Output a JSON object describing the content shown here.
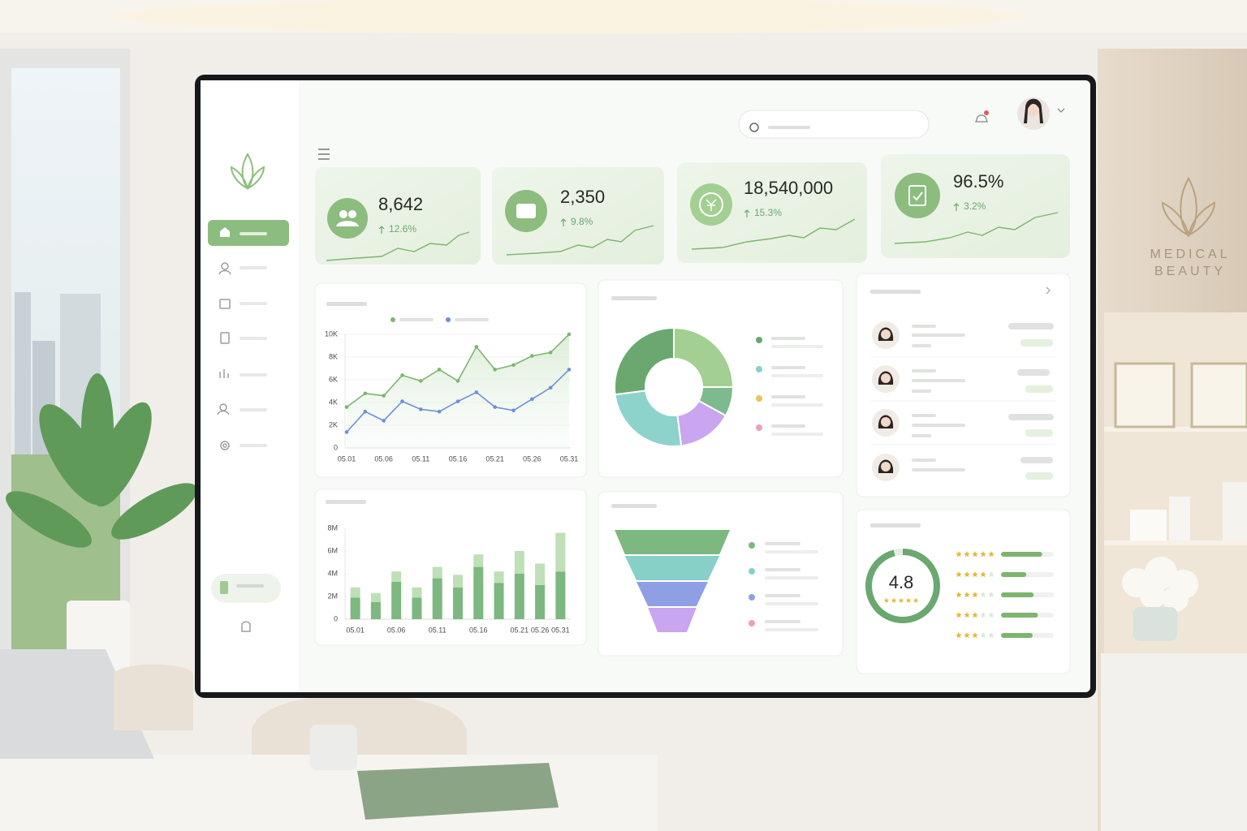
{
  "sign": {
    "line1": "MEDICAL",
    "line2": "BEAUTY"
  },
  "kpis": [
    {
      "value": "8,642",
      "change": "12.6%"
    },
    {
      "value": "2,350",
      "change": "9.8%"
    },
    {
      "value": "18,540,000",
      "change": "15.3%"
    },
    {
      "value": "96.5%",
      "change": "3.2%"
    }
  ],
  "chart_data": [
    {
      "type": "line",
      "categories": [
        "05.01",
        null,
        "05.06",
        null,
        "05.11",
        null,
        "05.16",
        null,
        "05.21",
        null,
        "05.26",
        null,
        "05.31"
      ],
      "series": [
        {
          "color": "#7db56f",
          "values": [
            3600,
            4800,
            4600,
            6400,
            5900,
            6900,
            5900,
            8900,
            6900,
            7300,
            8100,
            8400,
            10000
          ]
        },
        {
          "color": "#6f8fd8",
          "values": [
            1400,
            3200,
            2400,
            4100,
            3400,
            3200,
            4100,
            4900,
            3600,
            3300,
            4300,
            5300,
            6900
          ]
        }
      ],
      "ylim": [
        0,
        10000
      ],
      "yticks": [
        0,
        {
          "value": 2000,
          "label": "2K"
        },
        {
          "value": 4000,
          "label": "4K"
        },
        {
          "value": 6000,
          "label": "6K"
        },
        {
          "value": 8000,
          "label": "8K"
        },
        {
          "value": 10000,
          "label": "10K"
        }
      ],
      "grid": true
    },
    {
      "type": "pie",
      "donut": true,
      "values": [
        25,
        8,
        15,
        25,
        27
      ],
      "colors": [
        "#a3cf92",
        "#7dbb8e",
        "#c9a6ef",
        "#8dd3cc",
        "#6aa86f"
      ],
      "legend_colors": [
        "#6aa86f",
        "#86d0c8",
        "#e8c45c",
        "#ef9fb0"
      ]
    },
    {
      "type": "bar",
      "stacked": true,
      "categories": [
        "05.01",
        null,
        "05.06",
        null,
        "05.11",
        null,
        "05.16",
        null,
        "05.21",
        "05.26",
        "05.31"
      ],
      "series": [
        {
          "color": "#7cb87f",
          "values": [
            1900000,
            1500000,
            3300000,
            1900000,
            3600000,
            2800000,
            4600000,
            3200000,
            4000000,
            3000000,
            4200000
          ]
        },
        {
          "color": "#bfdfb7",
          "values": [
            900000,
            800000,
            900000,
            900000,
            1000000,
            1100000,
            1100000,
            1000000,
            2000000,
            1900000,
            3400000
          ]
        }
      ],
      "ylim": [
        0,
        8000000
      ],
      "yticks": [
        0,
        {
          "value": 2000000,
          "label": "2M"
        },
        {
          "value": 4000000,
          "label": "4M"
        },
        {
          "value": 6000000,
          "label": "6M"
        },
        {
          "value": 8000000,
          "label": "8M"
        }
      ],
      "grid": false
    },
    {
      "type": "funnel",
      "values": [
        100,
        82,
        62,
        42
      ],
      "colors": [
        "#7cb87f",
        "#86d0c8",
        "#8f9fe3",
        "#c9a6ef"
      ],
      "legend_colors": [
        "#7cb87f",
        "#86d0c8",
        "#8f9fe3",
        "#ef9fb0"
      ]
    }
  ],
  "rating": {
    "score": 4.8,
    "max": 5,
    "stars": [
      5,
      4,
      3,
      3,
      3
    ],
    "shares": [
      78,
      48,
      62,
      70,
      60
    ]
  }
}
